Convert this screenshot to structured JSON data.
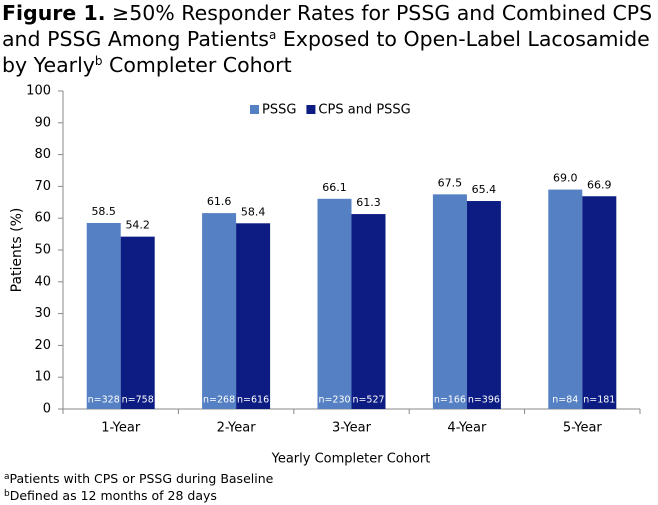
{
  "chart_data": {
    "type": "bar",
    "title_parts": [
      "Figure 1.",
      "≥50% Responder Rates for PSSG and Combined CPS and PSSG Among Patients",
      "a",
      "Exposed to Open-Label Lacosamide by Yearly",
      "b",
      "Completer Cohort"
    ],
    "categories": [
      "1-Year",
      "2-Year",
      "3-Year",
      "4-Year",
      "5-Year"
    ],
    "series": [
      {
        "name": "PSSG",
        "color": "#5580c3",
        "values": [
          58.5,
          61.6,
          66.1,
          67.5,
          69.0
        ],
        "value_labels": [
          "58.5",
          "61.6",
          "66.1",
          "67.5",
          "69.0"
        ],
        "n_labels": [
          "n=328",
          "n=268",
          "n=230",
          "n=166",
          "n=84"
        ]
      },
      {
        "name": "CPS and PSSG",
        "color": "#0c1c82",
        "values": [
          54.2,
          58.4,
          61.3,
          65.4,
          66.9
        ],
        "n_labels": [
          "n=758",
          "n=616",
          "n=527",
          "n=396",
          "n=181"
        ]
      }
    ],
    "ylim": [
      0,
      100
    ],
    "yticks": [
      0,
      10,
      20,
      30,
      40,
      50,
      60,
      70,
      80,
      90,
      100
    ],
    "ylabel": "Patients (%)",
    "xlabel": "Yearly Completer Cohort",
    "legend": "top",
    "grid": false,
    "footnotes": [
      {
        "mark": "a",
        "text": "Patients with CPS or PSSG during Baseline"
      },
      {
        "mark": "b",
        "text": "Defined as 12 months of 28 days"
      }
    ]
  }
}
